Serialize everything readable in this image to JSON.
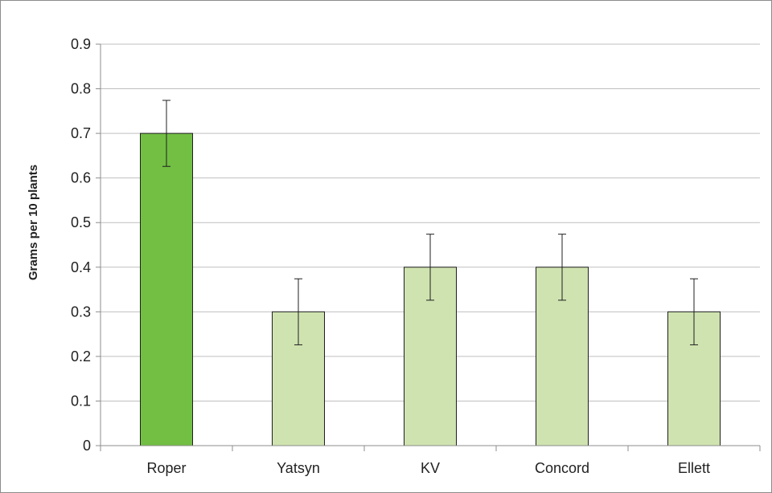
{
  "chart_data": {
    "type": "bar",
    "title": "",
    "xlabel": "",
    "ylabel": "Grams per 10 plants",
    "categories": [
      "Roper",
      "Yatsyn",
      "KV",
      "Concord",
      "Ellett"
    ],
    "series": [
      {
        "values": [
          0.7,
          0.3,
          0.4,
          0.4,
          0.3
        ]
      }
    ],
    "error_bars": [
      0.074,
      0.074,
      0.074,
      0.074,
      0.074
    ],
    "ylim": [
      0,
      0.9
    ],
    "yticks": [
      "0",
      "0.1",
      "0.2",
      "0.3",
      "0.4",
      "0.5",
      "0.6",
      "0.7",
      "0.8",
      "0.9"
    ],
    "grid": true,
    "legend": "none",
    "colors": {
      "highlight_fill": "#72bf44",
      "bar_fill": "#cfe3b0",
      "bar_stroke": "#1f1f1f",
      "grid": "#bfbfbf",
      "axis": "#8c8c8c"
    },
    "highlight_index": 0
  }
}
